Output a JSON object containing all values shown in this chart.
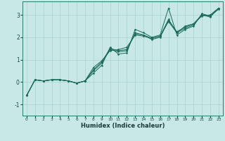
{
  "xlabel": "Humidex (Indice chaleur)",
  "ylabel": "",
  "bg_color": "#c8e8e8",
  "grid_color": "#a8d0d0",
  "line_color": "#1a6b5a",
  "xlim": [
    -0.5,
    23.5
  ],
  "ylim": [
    -1.5,
    3.6
  ],
  "yticks": [
    -1,
    0,
    1,
    2,
    3
  ],
  "xticks": [
    0,
    1,
    2,
    3,
    4,
    5,
    6,
    7,
    8,
    9,
    10,
    11,
    12,
    13,
    14,
    15,
    16,
    17,
    18,
    19,
    20,
    21,
    22,
    23
  ],
  "lines": [
    {
      "x": [
        0,
        1,
        2,
        3,
        4,
        5,
        6,
        7,
        8,
        9,
        10,
        11,
        12,
        13,
        14,
        15,
        16,
        17,
        18,
        19,
        20,
        21,
        22,
        23
      ],
      "y": [
        -0.6,
        0.1,
        0.05,
        0.1,
        0.1,
        0.05,
        -0.05,
        0.05,
        0.4,
        0.75,
        1.55,
        1.25,
        1.3,
        2.35,
        2.2,
        2.0,
        2.1,
        3.3,
        2.1,
        2.35,
        2.5,
        3.05,
        2.95,
        3.25
      ]
    },
    {
      "x": [
        0,
        1,
        2,
        3,
        4,
        5,
        6,
        7,
        8,
        9,
        10,
        11,
        12,
        13,
        14,
        15,
        16,
        17,
        18,
        19,
        20,
        21,
        22,
        23
      ],
      "y": [
        -0.6,
        0.1,
        0.05,
        0.1,
        0.1,
        0.05,
        -0.05,
        0.05,
        0.65,
        0.95,
        1.4,
        1.45,
        1.55,
        2.1,
        2.05,
        1.95,
        2.05,
        2.7,
        2.2,
        2.5,
        2.6,
        2.95,
        3.0,
        3.3
      ]
    },
    {
      "x": [
        0,
        1,
        2,
        3,
        4,
        5,
        6,
        7,
        8,
        9,
        10,
        11,
        12,
        13,
        14,
        15,
        16,
        17,
        18,
        19,
        20,
        21,
        22,
        23
      ],
      "y": [
        -0.6,
        0.1,
        0.05,
        0.1,
        0.1,
        0.05,
        -0.05,
        0.05,
        0.5,
        0.85,
        1.45,
        1.35,
        1.4,
        2.2,
        2.1,
        1.95,
        2.05,
        2.8,
        2.2,
        2.4,
        2.55,
        3.0,
        2.9,
        3.3
      ]
    },
    {
      "x": [
        0,
        1,
        2,
        3,
        4,
        5,
        6,
        7,
        8,
        9,
        10,
        11,
        12,
        13,
        14,
        15,
        16,
        17,
        18,
        19,
        20,
        21,
        22,
        23
      ],
      "y": [
        -0.6,
        0.1,
        0.05,
        0.1,
        0.1,
        0.05,
        -0.05,
        0.05,
        0.55,
        0.9,
        1.5,
        1.4,
        1.45,
        2.15,
        2.1,
        1.9,
        2.0,
        2.75,
        2.25,
        2.45,
        2.6,
        3.0,
        2.95,
        3.3
      ]
    }
  ],
  "figsize": [
    3.2,
    2.0
  ],
  "dpi": 100
}
